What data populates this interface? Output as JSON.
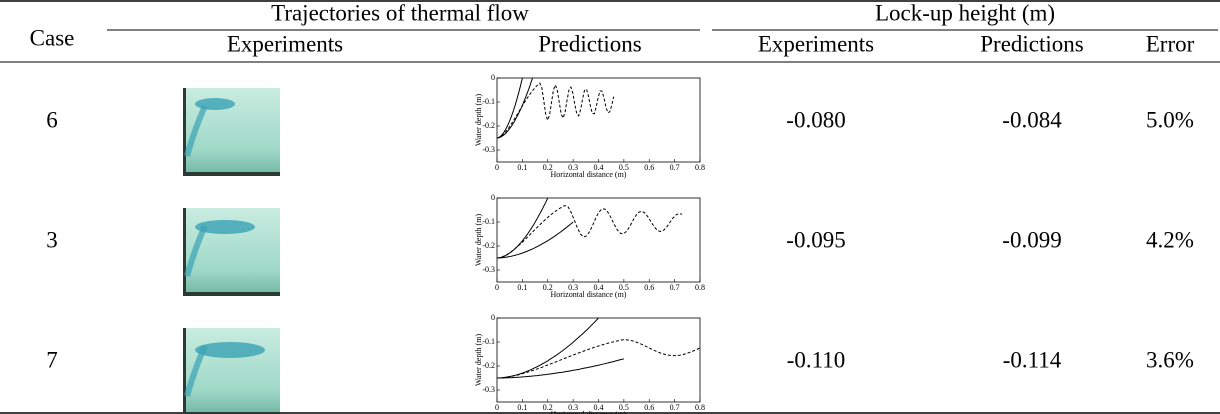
{
  "header": {
    "case": "Case",
    "group1": "Trajectories of thermal flow",
    "group2": "Lock-up height (m)",
    "columns": [
      "Experiments",
      "Predictions",
      "Experiments",
      "Predictions",
      "Error"
    ]
  },
  "plot_axes": {
    "ylabel": "Water depth (m)",
    "xlabel": "Horizontal distance (m)",
    "xlim": [
      0,
      0.8
    ],
    "ylim": [
      -0.35,
      0
    ],
    "xticks": [
      0,
      0.1,
      0.2,
      0.3,
      0.4,
      0.5,
      0.6,
      0.7,
      0.8
    ],
    "yticks": [
      0,
      -0.1,
      -0.2,
      -0.3
    ]
  },
  "rows": [
    {
      "case": "6",
      "experiment": "-0.080",
      "prediction": "-0.084",
      "error": "5.0%"
    },
    {
      "case": "3",
      "experiment": "-0.095",
      "prediction": "-0.099",
      "error": "4.2%"
    },
    {
      "case": "7",
      "experiment": "-0.110",
      "prediction": "-0.114",
      "error": "3.6%"
    }
  ]
}
